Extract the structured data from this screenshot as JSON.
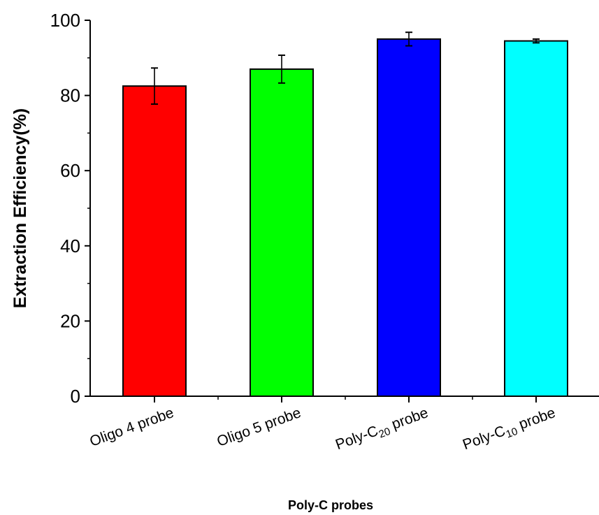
{
  "chart_data": {
    "type": "bar",
    "title": "",
    "xlabel": "Poly-C probes",
    "ylabel": "Extraction Efficiency(%)",
    "ylim": [
      0,
      100
    ],
    "yticks": [
      0,
      20,
      40,
      60,
      80,
      100
    ],
    "grid": false,
    "categories": [
      {
        "label": "Oligo 4 probe",
        "main": "Oligo 4 probe",
        "sub": "",
        "suffix": ""
      },
      {
        "label": "Oligo 5 probe",
        "main": "Oligo 5 probe",
        "sub": "",
        "suffix": ""
      },
      {
        "label": "Poly-C20 probe",
        "main": "Poly-C",
        "sub": "20",
        "suffix": " probe"
      },
      {
        "label": "Poly-C10 probe",
        "main": "Poly-C",
        "sub": "10",
        "suffix": " probe"
      }
    ],
    "values": [
      82.5,
      87.0,
      95.0,
      94.5
    ],
    "errors": [
      4.8,
      3.7,
      1.8,
      0.5
    ],
    "colors": [
      "#ff0000",
      "#00ff00",
      "#0000ff",
      "#00ffff"
    ]
  }
}
